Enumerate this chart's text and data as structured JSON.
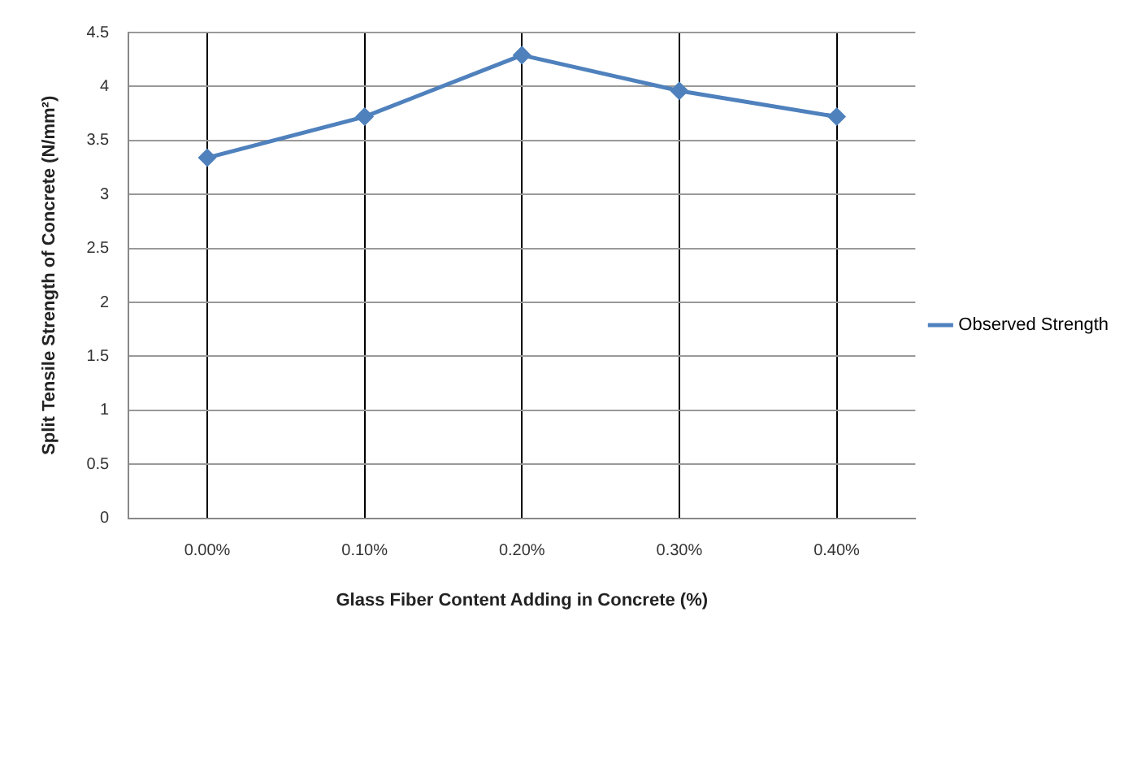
{
  "chart_data": {
    "type": "line",
    "xlabel": "Glass Fiber Content Adding in Concrete (%)",
    "ylabel": "Split Tensile Strength of Concrete (N/mm²)",
    "categories": [
      "0.00%",
      "0.10%",
      "0.20%",
      "0.30%",
      "0.40%"
    ],
    "series": [
      {
        "name": "Observed Strength",
        "color": "#4f81bd",
        "values": [
          3.34,
          3.72,
          4.29,
          3.96,
          3.72
        ]
      }
    ],
    "ylim": [
      0,
      4.5
    ],
    "yticks": [
      0,
      0.5,
      1,
      1.5,
      2,
      2.5,
      3,
      3.5,
      4,
      4.5
    ],
    "grid": true,
    "legend": "right",
    "marker": "diamond",
    "line_style": "solid"
  }
}
